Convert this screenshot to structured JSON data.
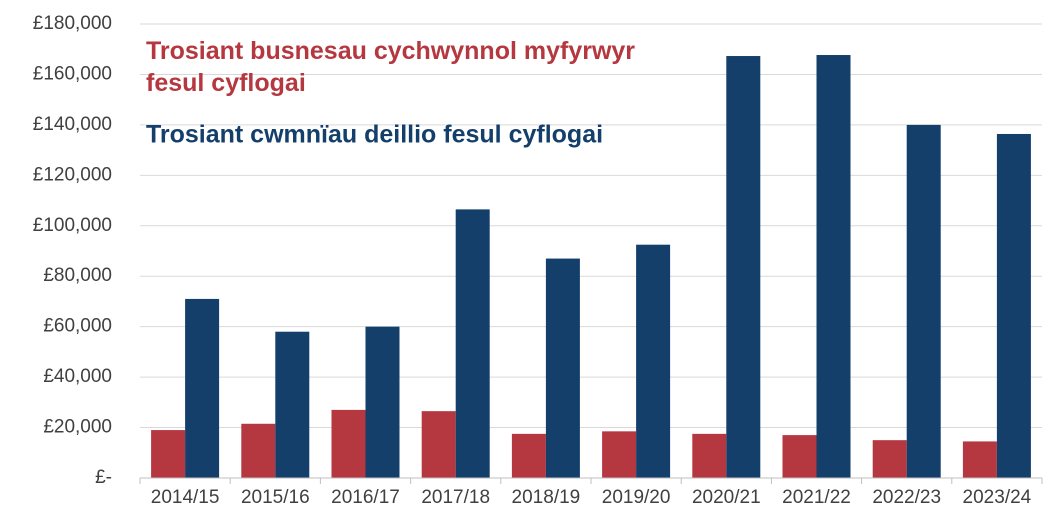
{
  "chart_data": {
    "type": "bar",
    "categories": [
      "2014/15",
      "2015/16",
      "2016/17",
      "2017/18",
      "2018/19",
      "2019/20",
      "2020/21",
      "2021/22",
      "2022/23",
      "2023/24"
    ],
    "series": [
      {
        "name": "Trosiant busnesau cychwynnol myfyrwyr fesul cyflogai",
        "color": "#b5373f",
        "values": [
          19000,
          21500,
          27000,
          26500,
          17500,
          18500,
          17500,
          17000,
          15000,
          14500
        ]
      },
      {
        "name": "Trosiant cwmnïau deillio fesul cyflogai",
        "color": "#143f6b",
        "values": [
          71000,
          58000,
          60000,
          106500,
          87000,
          92500,
          167300,
          167700,
          140000,
          136400
        ]
      }
    ],
    "ylim": [
      0,
      180000
    ],
    "yticks": [
      {
        "value": 0,
        "label": "£-"
      },
      {
        "value": 20000,
        "label": "£20,000"
      },
      {
        "value": 40000,
        "label": "£40,000"
      },
      {
        "value": 60000,
        "label": "£60,000"
      },
      {
        "value": 80000,
        "label": "£80,000"
      },
      {
        "value": 100000,
        "label": "£100,000"
      },
      {
        "value": 120000,
        "label": "£120,000"
      },
      {
        "value": 140000,
        "label": "£140,000"
      },
      {
        "value": 160000,
        "label": "£160,000"
      },
      {
        "value": 180000,
        "label": "£180,000"
      }
    ],
    "grid": true
  }
}
